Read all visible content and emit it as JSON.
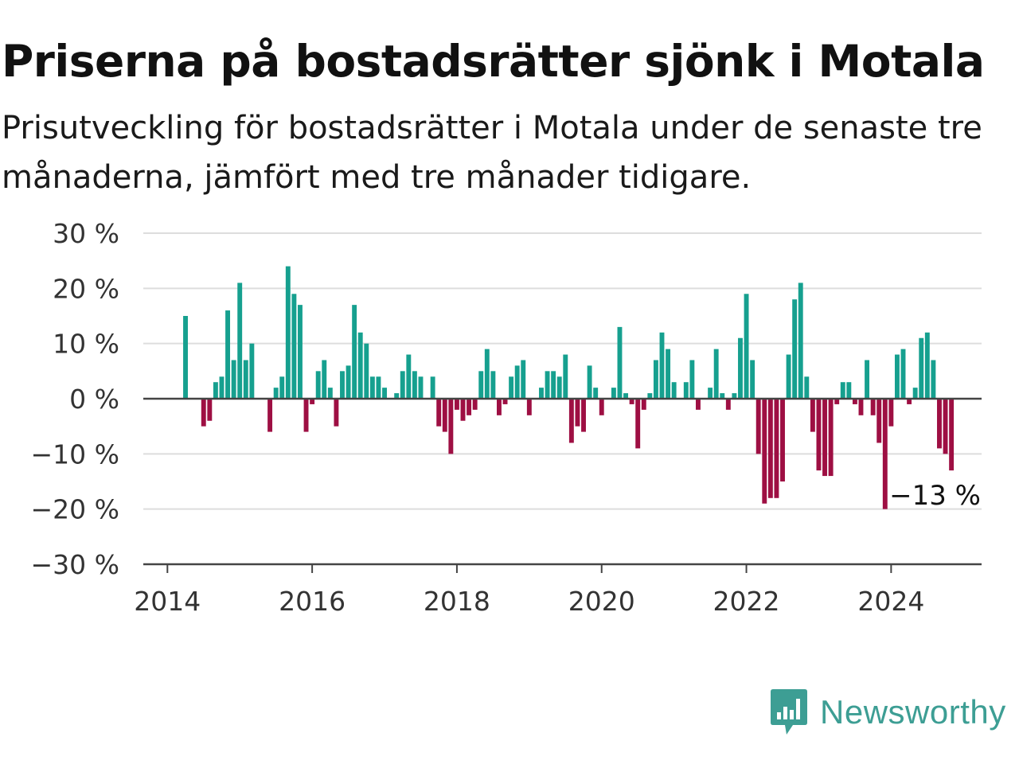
{
  "header": {
    "title": "Priserna på bostadsrätter sjönk i Motala",
    "subtitle": "Prisutveckling för bostadsrätter i Motala under de senaste tre månaderna, jämfört med tre månader tidigare."
  },
  "brand": {
    "name": "Newsworthy",
    "logo_icon": "bar-chart-speech-bubble-icon",
    "color": "#3d9e94"
  },
  "colors": {
    "positive": "#16a08f",
    "negative": "#9e0f43",
    "grid": "#dddddd",
    "axis": "#444444"
  },
  "chart_data": {
    "type": "bar",
    "title": "Priserna på bostadsrätter sjönk i Motala",
    "subtitle": "Prisutveckling för bostadsrätter i Motala under de senaste tre månaderna, jämfört med tre månader tidigare.",
    "xlabel": "",
    "ylabel": "",
    "unit": "%",
    "ylim": [
      -30,
      30
    ],
    "y_ticks": [
      30,
      20,
      10,
      0,
      -10,
      -20,
      -30
    ],
    "y_tick_labels": [
      "30 %",
      "20 %",
      "10 %",
      "0 %",
      "−10 %",
      "−20 %",
      "−30 %"
    ],
    "xlim": [
      "2013-09",
      "2025-04"
    ],
    "x_ticks": [
      "2014",
      "2016",
      "2018",
      "2020",
      "2022",
      "2024"
    ],
    "grid": true,
    "annotation": {
      "text": "−13 %",
      "month": "2024-11",
      "value": -13
    },
    "months": [
      "2014-01",
      "2014-02",
      "2014-03",
      "2014-04",
      "2014-05",
      "2014-06",
      "2014-07",
      "2014-08",
      "2014-09",
      "2014-10",
      "2014-11",
      "2014-12",
      "2015-01",
      "2015-02",
      "2015-03",
      "2015-04",
      "2015-05",
      "2015-06",
      "2015-07",
      "2015-08",
      "2015-09",
      "2015-10",
      "2015-11",
      "2015-12",
      "2016-01",
      "2016-02",
      "2016-03",
      "2016-04",
      "2016-05",
      "2016-06",
      "2016-07",
      "2016-08",
      "2016-09",
      "2016-10",
      "2016-11",
      "2016-12",
      "2017-01",
      "2017-02",
      "2017-03",
      "2017-04",
      "2017-05",
      "2017-06",
      "2017-07",
      "2017-08",
      "2017-09",
      "2017-10",
      "2017-11",
      "2017-12",
      "2018-01",
      "2018-02",
      "2018-03",
      "2018-04",
      "2018-05",
      "2018-06",
      "2018-07",
      "2018-08",
      "2018-09",
      "2018-10",
      "2018-11",
      "2018-12",
      "2019-01",
      "2019-02",
      "2019-03",
      "2019-04",
      "2019-05",
      "2019-06",
      "2019-07",
      "2019-08",
      "2019-09",
      "2019-10",
      "2019-11",
      "2019-12",
      "2020-01",
      "2020-02",
      "2020-03",
      "2020-04",
      "2020-05",
      "2020-06",
      "2020-07",
      "2020-08",
      "2020-09",
      "2020-10",
      "2020-11",
      "2020-12",
      "2021-01",
      "2021-02",
      "2021-03",
      "2021-04",
      "2021-05",
      "2021-06",
      "2021-07",
      "2021-08",
      "2021-09",
      "2021-10",
      "2021-11",
      "2021-12",
      "2022-01",
      "2022-02",
      "2022-03",
      "2022-04",
      "2022-05",
      "2022-06",
      "2022-07",
      "2022-08",
      "2022-09",
      "2022-10",
      "2022-11",
      "2022-12",
      "2023-01",
      "2023-02",
      "2023-03",
      "2023-04",
      "2023-05",
      "2023-06",
      "2023-07",
      "2023-08",
      "2023-09",
      "2023-10",
      "2023-11",
      "2023-12",
      "2024-01",
      "2024-02",
      "2024-03",
      "2024-04",
      "2024-05",
      "2024-06",
      "2024-07",
      "2024-08",
      "2024-09",
      "2024-10",
      "2024-11"
    ],
    "values": [
      null,
      null,
      null,
      15,
      null,
      null,
      -5,
      -4,
      3,
      4,
      16,
      7,
      21,
      7,
      10,
      0,
      0,
      -6,
      2,
      4,
      24,
      19,
      17,
      -6,
      -1,
      5,
      7,
      2,
      -5,
      5,
      6,
      17,
      12,
      10,
      4,
      4,
      2,
      0,
      1,
      5,
      8,
      5,
      4,
      0,
      4,
      -5,
      -6,
      -10,
      -2,
      -4,
      -3,
      -2,
      5,
      9,
      5,
      -3,
      -1,
      4,
      6,
      7,
      -3,
      0,
      2,
      5,
      5,
      4,
      8,
      -8,
      -5,
      -6,
      6,
      2,
      -3,
      0,
      2,
      13,
      1,
      -1,
      -9,
      -2,
      1,
      7,
      12,
      9,
      3,
      0,
      3,
      7,
      -2,
      0,
      2,
      9,
      1,
      -2,
      1,
      11,
      19,
      7,
      -10,
      -19,
      -18,
      -18,
      -15,
      8,
      18,
      21,
      4,
      -6,
      -13,
      -14,
      -14,
      -1,
      3,
      3,
      -1,
      -3,
      7,
      -3,
      -8,
      -20,
      -5,
      8,
      9,
      -1,
      2,
      11,
      12,
      7,
      -9,
      -10,
      -13
    ]
  }
}
